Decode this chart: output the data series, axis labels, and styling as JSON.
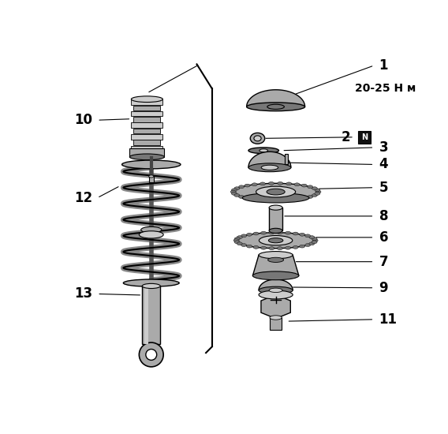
{
  "background_color": "#ffffff",
  "fig_width": 5.68,
  "fig_height": 5.5,
  "dpi": 100,
  "line_color": "#000000",
  "label_fontsize": 12,
  "torque_fontsize": 10,
  "torque_label": "20-25 Н м",
  "gray_light": "#cccccc",
  "gray_mid": "#aaaaaa",
  "gray_dark": "#777777",
  "gray_fill": "#bbbbbb"
}
